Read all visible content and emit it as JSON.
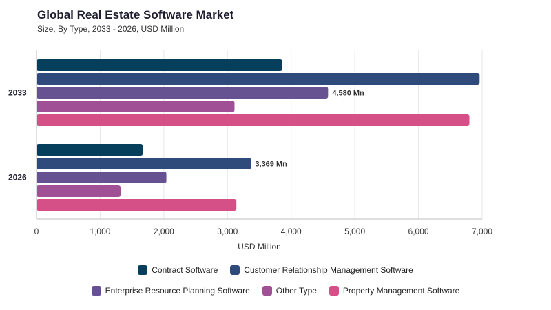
{
  "chart_data": {
    "type": "bar",
    "orientation": "horizontal",
    "title": "Global Real Estate Software Market",
    "subtitle": "Size, By Type, 2033 - 2026, USD Million",
    "xlabel": "USD Million",
    "ylabel": "",
    "xlim": [
      0,
      7000
    ],
    "xticks": [
      "0",
      "1,000",
      "2,000",
      "3,000",
      "4,000",
      "5,000",
      "6,000",
      "7,000"
    ],
    "grid": true,
    "legend_position": "bottom",
    "categories": [
      "2033",
      "2026"
    ],
    "series": [
      {
        "name": "Contract Software",
        "color": "#063f5c",
        "values": [
          3860,
          1670
        ]
      },
      {
        "name": "Customer Relationship Management Software",
        "color": "#2f4b7c",
        "values": [
          6960,
          3369
        ]
      },
      {
        "name": "Enterprise Resource Planning Software",
        "color": "#665191",
        "values": [
          4580,
          2040
        ]
      },
      {
        "name": "Other Type",
        "color": "#a05195",
        "values": [
          3110,
          1320
        ]
      },
      {
        "name": "Property Management Software",
        "color": "#d45087",
        "values": [
          6800,
          3140
        ]
      }
    ],
    "annotations": [
      {
        "category": "2033",
        "series": "Enterprise Resource Planning Software",
        "text": "4,580 Mn"
      },
      {
        "category": "2026",
        "series": "Customer Relationship Management Software",
        "text": "3,369 Mn"
      }
    ]
  }
}
